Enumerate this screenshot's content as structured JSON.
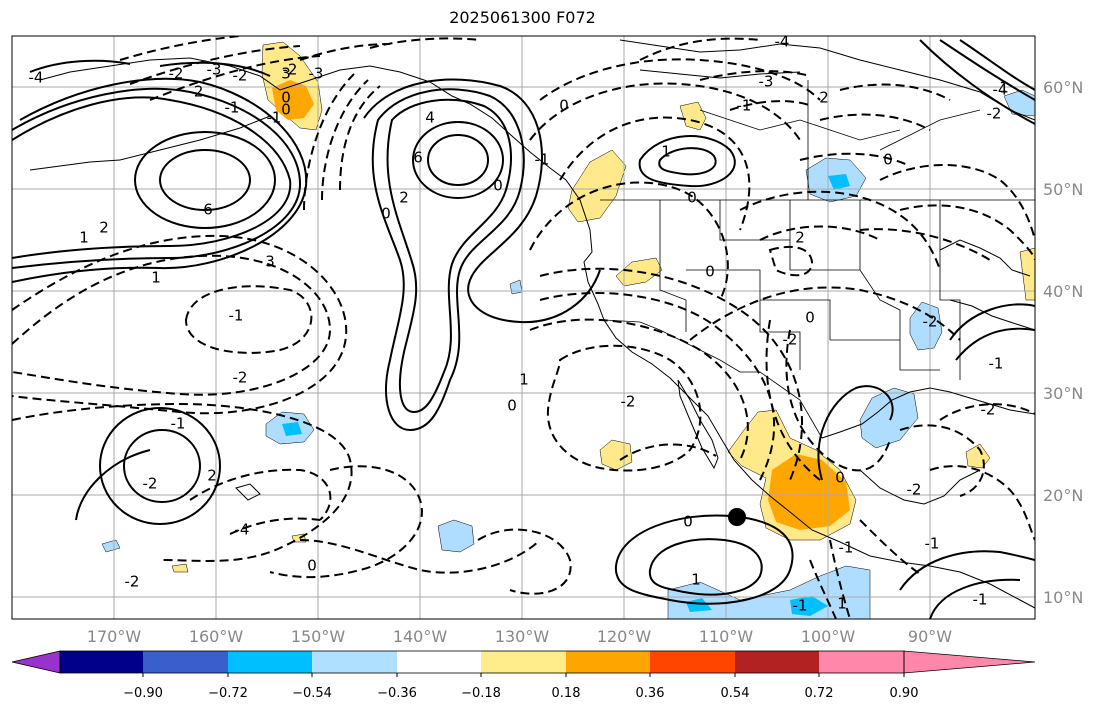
{
  "title": "2025061300 F072",
  "map": {
    "lat_labels": [
      "60°N",
      "50°N",
      "40°N",
      "30°N",
      "20°N",
      "10°N"
    ],
    "lon_labels": [
      "170°W",
      "160°W",
      "150°W",
      "140°W",
      "130°W",
      "120°W",
      "110°W",
      "100°W",
      "90°W"
    ],
    "contour_labels": [
      "-4",
      "-3",
      "-2",
      "-2",
      "-3",
      "-2",
      "-2",
      "-1",
      "0",
      "-1",
      "0",
      "3",
      "6",
      "1",
      "2",
      "3",
      "6",
      "0",
      "0",
      "4",
      "2",
      "1",
      "-1",
      "-2",
      "-1",
      "-2",
      "2",
      "-4",
      "0",
      "-2",
      "0",
      "1",
      "-2",
      "0",
      "1",
      "-3",
      "-1",
      "2",
      "-4",
      "-4",
      "-2",
      "1",
      "2",
      "-2",
      "0",
      "0",
      "0",
      "-2",
      "-1",
      "-1",
      "-2",
      "-1",
      "1",
      "0",
      "1",
      "-1",
      "-2",
      "-1",
      "0",
      "-1",
      "0"
    ],
    "shading_colors": {
      "pos_018": "#ffe98a",
      "pos_036": "#ffa600",
      "neg_018": "#aeddff",
      "neg_036": "#00c0ff"
    }
  },
  "colorbar": {
    "colors": [
      "#9932cc",
      "#00008b",
      "#3a5fcd",
      "#00bfff",
      "#b0e0ff",
      "#ffffff",
      "#ffec8b",
      "#ffa500",
      "#ff4500",
      "#b22222",
      "#ff88aa"
    ],
    "tick_labels": [
      "−0.90",
      "−0.72",
      "−0.54",
      "−0.36",
      "−0.18",
      "0.18",
      "0.36",
      "0.54",
      "0.72",
      "0.90"
    ]
  }
}
